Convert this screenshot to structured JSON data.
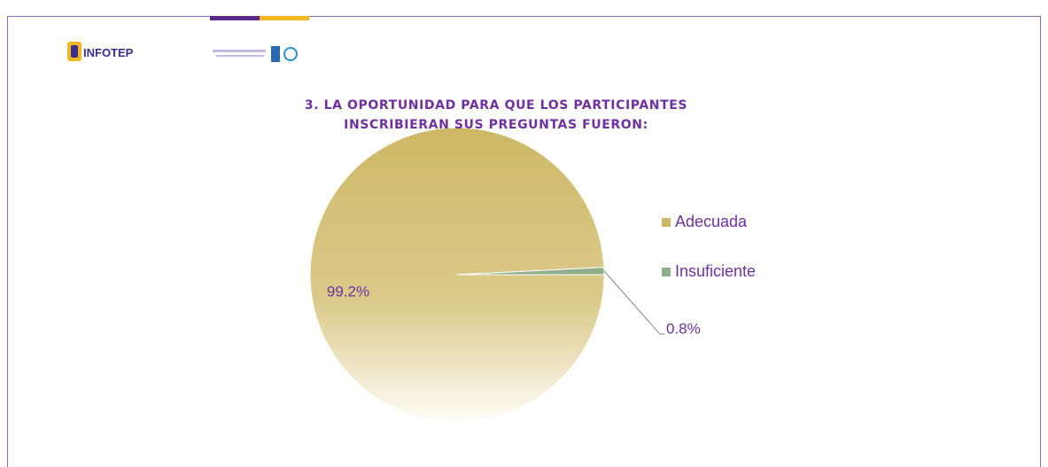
{
  "header": {
    "logo_text": "INFOTEP"
  },
  "chart_data": {
    "type": "pie",
    "title": "3. LA OPORTUNIDAD PARA QUE LOS PARTICIPANTES INSCRIBIERAN SUS PREGUNTAS FUERON:",
    "categories": [
      "Adecuada",
      "Insuficiente"
    ],
    "values": [
      99.2,
      0.8
    ],
    "value_labels": [
      "99.2%",
      "0.8%"
    ],
    "colors": [
      "#cdb866",
      "#8fae8a"
    ],
    "legend": "right"
  }
}
